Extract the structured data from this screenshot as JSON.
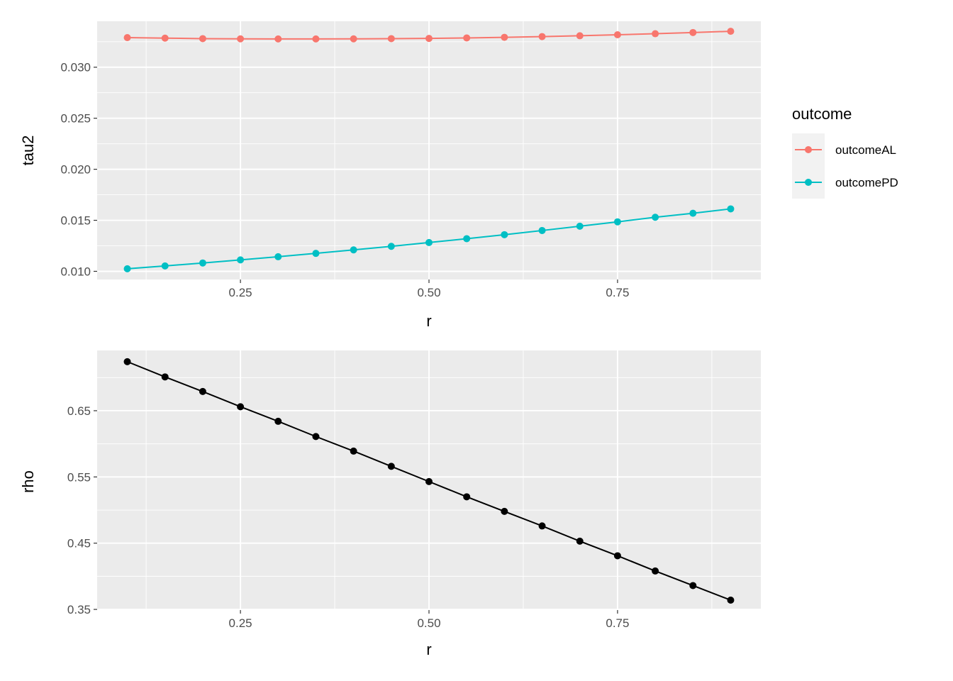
{
  "chart_data": [
    {
      "type": "line",
      "xlabel": "r",
      "ylabel": "tau2",
      "x": [
        0.1,
        0.15,
        0.2,
        0.25,
        0.3,
        0.35,
        0.4,
        0.45,
        0.5,
        0.55,
        0.6,
        0.65,
        0.7,
        0.75,
        0.8,
        0.85,
        0.9
      ],
      "xlim": [
        0.06,
        0.94
      ],
      "ylim": [
        0.0092,
        0.0345
      ],
      "x_ticks": [
        {
          "value": 0.25,
          "label": "0.25"
        },
        {
          "value": 0.5,
          "label": "0.50"
        },
        {
          "value": 0.75,
          "label": "0.75"
        }
      ],
      "y_ticks": [
        {
          "value": 0.01,
          "label": "0.010"
        },
        {
          "value": 0.015,
          "label": "0.015"
        },
        {
          "value": 0.02,
          "label": "0.020"
        },
        {
          "value": 0.025,
          "label": "0.025"
        },
        {
          "value": 0.03,
          "label": "0.030"
        }
      ],
      "grid": true,
      "legend": {
        "title": "outcome",
        "position": "right"
      },
      "series": [
        {
          "name": "outcomeAL",
          "color": "#F8766D",
          "values": [
            0.0329,
            0.03285,
            0.0328,
            0.03278,
            0.03277,
            0.03277,
            0.03278,
            0.0328,
            0.03282,
            0.03287,
            0.03293,
            0.033,
            0.03308,
            0.03318,
            0.03328,
            0.0334,
            0.03352
          ]
        },
        {
          "name": "outcomePD",
          "color": "#00BFC4",
          "values": [
            0.01025,
            0.01053,
            0.01082,
            0.01112,
            0.01143,
            0.01176,
            0.0121,
            0.01245,
            0.01282,
            0.0132,
            0.01359,
            0.014,
            0.01442,
            0.01485,
            0.0153,
            0.01569,
            0.01612
          ]
        }
      ]
    },
    {
      "type": "line",
      "xlabel": "r",
      "ylabel": "rho",
      "x": [
        0.1,
        0.15,
        0.2,
        0.25,
        0.3,
        0.35,
        0.4,
        0.45,
        0.5,
        0.55,
        0.6,
        0.65,
        0.7,
        0.75,
        0.8,
        0.85,
        0.9
      ],
      "xlim": [
        0.06,
        0.94
      ],
      "ylim": [
        0.349,
        0.741
      ],
      "x_ticks": [
        {
          "value": 0.25,
          "label": "0.25"
        },
        {
          "value": 0.5,
          "label": "0.50"
        },
        {
          "value": 0.75,
          "label": "0.75"
        }
      ],
      "y_ticks": [
        {
          "value": 0.35,
          "label": "0.35"
        },
        {
          "value": 0.45,
          "label": "0.45"
        },
        {
          "value": 0.55,
          "label": "0.55"
        },
        {
          "value": 0.65,
          "label": "0.65"
        }
      ],
      "grid": true,
      "series": [
        {
          "color": "#000000",
          "values": [
            0.724,
            0.701,
            0.679,
            0.656,
            0.634,
            0.611,
            0.589,
            0.566,
            0.543,
            0.52,
            0.498,
            0.476,
            0.453,
            0.431,
            0.408,
            0.386,
            0.364
          ]
        }
      ]
    }
  ]
}
